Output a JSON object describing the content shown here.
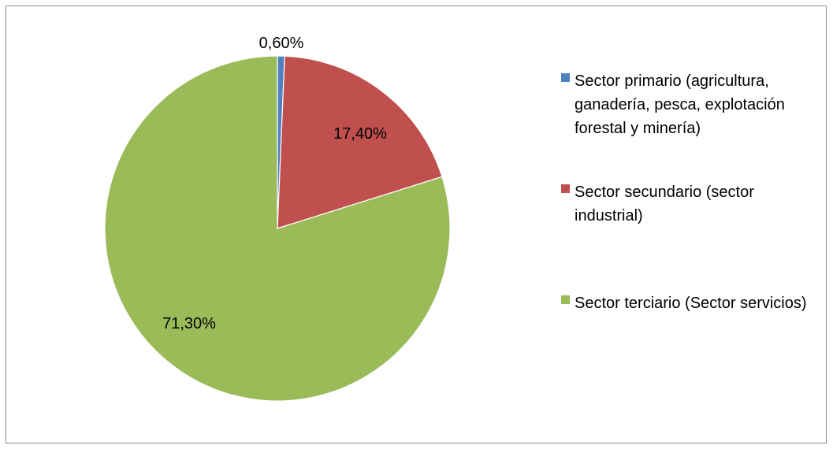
{
  "chart_data": {
    "type": "pie",
    "labels": [
      "Sector primario (agricultura, ganadería, pesca, explotación forestal y minería)",
      "Sector secundario (sector industrial)",
      "Sector terciario (Sector servicios)"
    ],
    "values": [
      0.6,
      17.4,
      71.3
    ],
    "value_labels": [
      "0,60%",
      "17,40%",
      "71,30%"
    ],
    "colors": [
      "#4f81bd",
      "#c0504d",
      "#9bbb59"
    ],
    "legend_position": "right",
    "title": ""
  }
}
